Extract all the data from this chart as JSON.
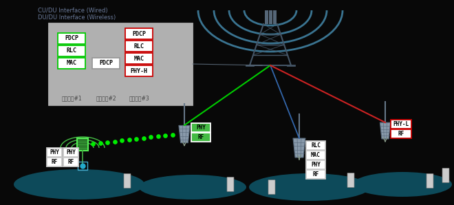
{
  "bg_color": "#080808",
  "legend_line1": "CU/DU Interface (Wired)",
  "legend_line2": "DU/DU Interface (Wireless)",
  "legend_color": "#6a7a9a",
  "green_border": "#00cc00",
  "red_border": "#cc0000",
  "gray_border": "#999999",
  "fn_labels": [
    "기능분할#1",
    "기능분할#2",
    "기능분할#3"
  ],
  "fn1_items": [
    "PDCP",
    "RLC",
    "MAC"
  ],
  "fn2_items": [
    "PDCP"
  ],
  "fn3_items": [
    "PDCP",
    "RLC",
    "MAC",
    "PHY-H"
  ],
  "teal_ellipse_color": "#0d4a5a",
  "green_dot_color": "#00ee00",
  "line_blue": "#3366aa",
  "line_green": "#00cc00",
  "line_red": "#cc2222",
  "line_gray": "#667788",
  "wave_color": "#4488aa",
  "tower_color": "#445566",
  "antenna_color": "#8899aa",
  "wifi_color": "#44bb44",
  "wifi_edge": "#55ee55"
}
